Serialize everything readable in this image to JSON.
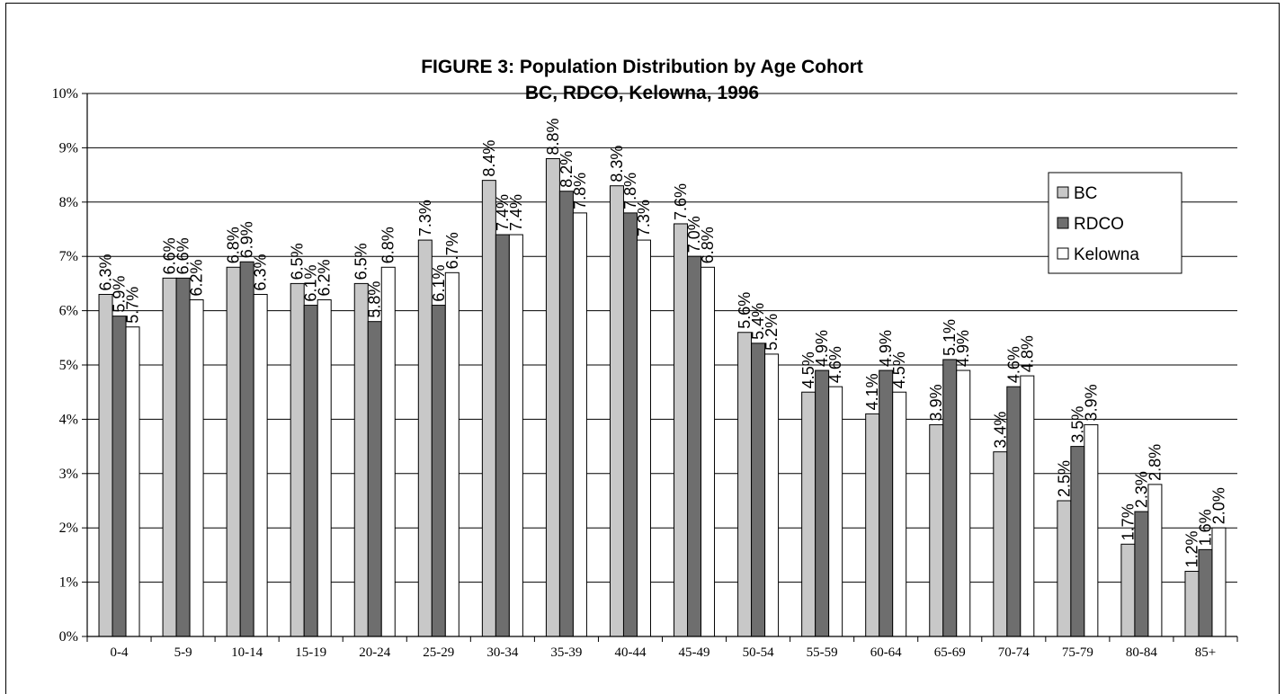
{
  "chart_data": {
    "type": "bar",
    "title": "FIGURE 3: Population Distribution by Age Cohort",
    "subtitle": "BC, RDCO, Kelowna, 1996",
    "xlabel": "",
    "ylabel": "",
    "ylim": [
      0,
      10
    ],
    "yticks": [
      "0%",
      "1%",
      "2%",
      "3%",
      "4%",
      "5%",
      "6%",
      "7%",
      "8%",
      "9%",
      "10%"
    ],
    "grid": true,
    "legend_position": "right",
    "categories": [
      "0-4",
      "5-9",
      "10-14",
      "15-19",
      "20-24",
      "25-29",
      "30-34",
      "35-39",
      "40-44",
      "45-49",
      "50-54",
      "55-59",
      "60-64",
      "65-69",
      "70-74",
      "75-79",
      "80-84",
      "85+"
    ],
    "series": [
      {
        "name": "BC",
        "color": "#c8c8c8",
        "values": [
          6.3,
          6.6,
          6.8,
          6.5,
          6.5,
          7.3,
          8.4,
          8.8,
          8.3,
          7.6,
          5.6,
          4.5,
          4.1,
          3.9,
          3.4,
          2.5,
          1.7,
          1.2
        ],
        "labels": [
          "6.3%",
          "6.6%",
          "6.8%",
          "6.5%",
          "6.5%",
          "7.3%",
          "8.4%",
          "8.8%",
          "8.3%",
          "7.6%",
          "5.6%",
          "4.5%",
          "4.1%",
          "3.9%",
          "3.4%",
          "2.5%",
          "1.7%",
          "1.2%"
        ]
      },
      {
        "name": "RDCO",
        "color": "#6e6e6e",
        "values": [
          5.9,
          6.6,
          6.9,
          6.1,
          5.8,
          6.1,
          7.4,
          8.2,
          7.8,
          7.0,
          5.4,
          4.9,
          4.9,
          5.1,
          4.6,
          3.5,
          2.3,
          1.6
        ],
        "labels": [
          "5.9%",
          "6.6%",
          "6.9%",
          "6.1%",
          "5.8%",
          "6.1%",
          "7.4%",
          "8.2%",
          "7.8%",
          "7.0%",
          "5.4%",
          "4.9%",
          "4.9%",
          "5.1%",
          "4.6%",
          "3.5%",
          "2.3%",
          "1.6%"
        ]
      },
      {
        "name": "Kelowna",
        "color": "#ffffff",
        "values": [
          5.7,
          6.2,
          6.3,
          6.2,
          6.8,
          6.7,
          7.4,
          7.8,
          7.3,
          6.8,
          5.2,
          4.6,
          4.5,
          4.9,
          4.8,
          3.9,
          2.8,
          2.0
        ],
        "labels": [
          "5.7%",
          "6.2%",
          "6.3%",
          "6.2%",
          "6.8%",
          "6.7%",
          "7.4%",
          "7.8%",
          "7.3%",
          "6.8%",
          "5.2%",
          "4.6%",
          "4.5%",
          "4.9%",
          "4.8%",
          "3.9%",
          "2.8%",
          "2.0%"
        ]
      }
    ]
  }
}
